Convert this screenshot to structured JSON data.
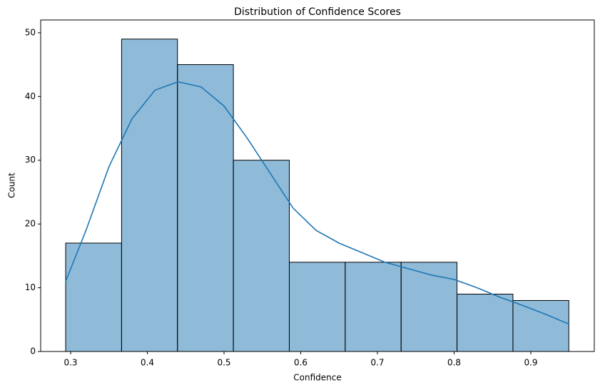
{
  "chart_data": {
    "type": "histogram",
    "title": "Distribution of Confidence Scores",
    "x_label": "Confidence",
    "y_label": "Count",
    "bins": [
      0.2935,
      0.3664,
      0.4393,
      0.5122,
      0.5851,
      0.658,
      0.7309,
      0.8038,
      0.8767,
      0.9496
    ],
    "values": [
      17,
      49,
      45,
      30,
      14,
      14,
      14,
      9,
      8
    ],
    "color": "#1f77b4",
    "kde": {
      "color": "#1f77b4",
      "x": [
        0.2935,
        0.32,
        0.35,
        0.38,
        0.41,
        0.44,
        0.47,
        0.5,
        0.53,
        0.56,
        0.59,
        0.62,
        0.65,
        0.68,
        0.71,
        0.74,
        0.77,
        0.8,
        0.83,
        0.86,
        0.89,
        0.92,
        0.9496
      ],
      "values": [
        11,
        19,
        29,
        36.5,
        41,
        42.3,
        41.5,
        38.5,
        33.5,
        28,
        22.5,
        19,
        17,
        15.5,
        14,
        13,
        12,
        11.3,
        10,
        8.5,
        7.2,
        5.8,
        4.3
      ]
    },
    "xlim": [
      0.2609,
      0.9828
    ],
    "ylim": [
      0,
      52
    ],
    "xticks": [
      0.3,
      0.4,
      0.5,
      0.6,
      0.7,
      0.8,
      0.9
    ],
    "yticks": [
      0,
      10,
      20,
      30,
      40,
      50
    ]
  }
}
